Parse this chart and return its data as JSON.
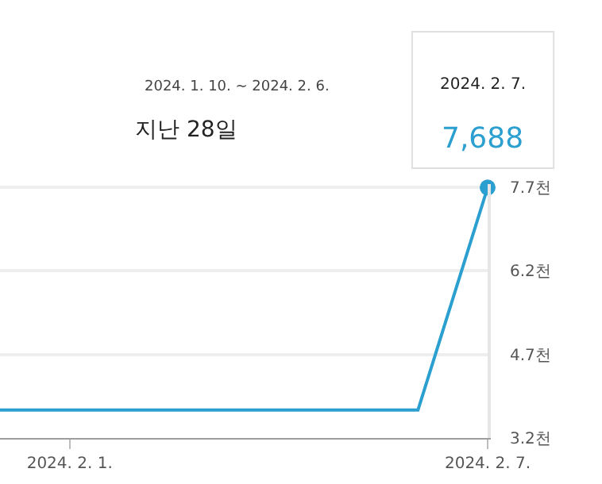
{
  "chart_data": {
    "type": "line",
    "title": "지난 28일",
    "subtitle": "2024. 1. 10. ~ 2024. 2. 6.",
    "x": [
      "2024-01-31",
      "2024-02-01",
      "2024-02-02",
      "2024-02-03",
      "2024-02-04",
      "2024-02-05",
      "2024-02-06",
      "2024-02-07"
    ],
    "series": [
      {
        "color": "#2b9fcf",
        "values": [
          3.7,
          3.7,
          3.7,
          3.7,
          3.7,
          3.7,
          3.7,
          7.688
        ],
        "marker": "none"
      },
      {
        "type": "scatter",
        "color": "#2b9fcf",
        "x": [
          "2024-02-07"
        ],
        "values": [
          7.688
        ],
        "marker": "circle"
      }
    ],
    "annotations": [
      "2024. 2. 7.",
      "7,688"
    ],
    "xlim": [
      "2024-01-31",
      "2024-02-07"
    ],
    "xticks": [
      {
        "value": "2024-02-01",
        "label": "2024. 2. 1."
      },
      {
        "value": "2024-02-07",
        "label": "2024. 2. 7."
      }
    ],
    "ylim": [
      3.2,
      7.75
    ],
    "yticks": [
      {
        "value": 3.2,
        "label": "3.2천"
      },
      {
        "value": 4.7,
        "label": "4.7천"
      },
      {
        "value": 6.2,
        "label": "6.2천"
      },
      {
        "value": 7.7,
        "label": "7.7천"
      }
    ],
    "grid": "y"
  }
}
